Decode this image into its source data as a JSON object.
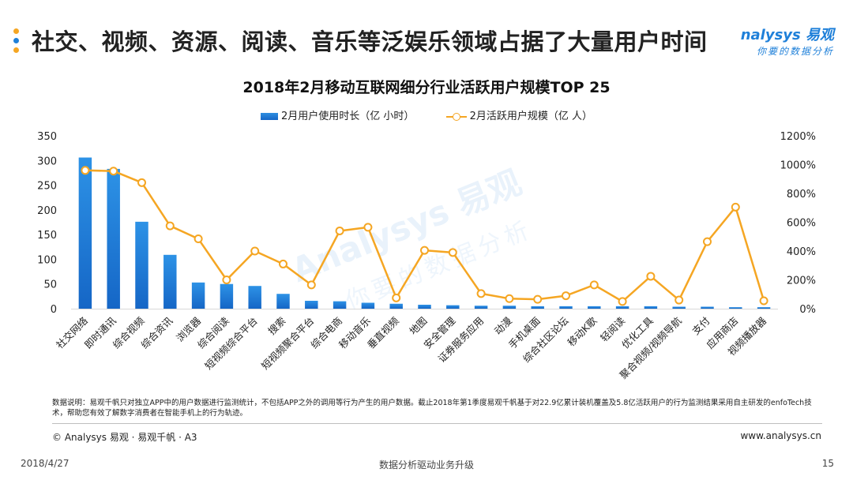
{
  "header": {
    "title": "社交、视频、资源、阅读、音乐等泛娱乐领域占据了大量用户时间",
    "logo_main": "nalysys 易观",
    "logo_sub": "你要的数据分析",
    "dot_colors": [
      "#f5a623",
      "#1f80d9",
      "#f5a623"
    ]
  },
  "watermark": {
    "line1": "Analysys 易观",
    "line2": "你要的数据分析"
  },
  "chart_data": {
    "type": "bar+line",
    "title": "2018年2月移动互联网细分行业活跃用户规模TOP 25",
    "legend_position": "top-center",
    "categories": [
      "社交网络",
      "即时通讯",
      "综合视频",
      "综合资讯",
      "浏览器",
      "综合阅读",
      "短视频综合平台",
      "搜索",
      "短视频聚合平台",
      "综合电商",
      "移动音乐",
      "垂直视频",
      "地图",
      "安全管理",
      "证券服务应用",
      "动漫",
      "手机桌面",
      "综合社区论坛",
      "移动K歌",
      "轻阅读",
      "优化工具",
      "聚合视频/视频导航",
      "支付",
      "应用商店",
      "视频播放器"
    ],
    "series": [
      {
        "name": "2月用户使用时长（亿 小时）",
        "type": "bar",
        "axis": "left",
        "color": "#1f80d9",
        "values": [
          306,
          283,
          176,
          109,
          53,
          50,
          46,
          30,
          16,
          15,
          12,
          10,
          8,
          7,
          6,
          6,
          5,
          5,
          5,
          5,
          5,
          4,
          4,
          3,
          3
        ]
      },
      {
        "name": "2月活跃用户规模（亿 人）",
        "type": "line",
        "axis": "right",
        "color": "#f5a623",
        "values": [
          960,
          955,
          875,
          575,
          485,
          200,
          400,
          310,
          165,
          540,
          565,
          75,
          405,
          390,
          105,
          70,
          65,
          90,
          165,
          50,
          225,
          60,
          465,
          705,
          55
        ]
      }
    ],
    "y_left": {
      "min": 0,
      "max": 350,
      "ticks": [
        "0",
        "50",
        "100",
        "150",
        "200",
        "250",
        "300",
        "350"
      ]
    },
    "y_right": {
      "min": 0,
      "max": 1200,
      "ticks": [
        "0%",
        "200%",
        "400%",
        "600%",
        "800%",
        "1000%",
        "1200%"
      ]
    },
    "grid": false
  },
  "note": "数据说明：易观千帆只对独立APP中的用户数据进行监测统计，不包括APP之外的调用等行为产生的用户数据。截止2018年第1季度易观千帆基于对22.9亿累计装机覆盖及5.8亿活跃用户的行为监测结果采用自主研发的enfoTech技术，帮助您有效了解数字消费者在智能手机上的行为轨迹。",
  "footer": {
    "copyright": "© Analysys 易观 · 易观千帆 · A3",
    "website": "www.analysys.cn",
    "date": "2018/4/27",
    "center": "数据分析驱动业务升级",
    "page": "15"
  }
}
